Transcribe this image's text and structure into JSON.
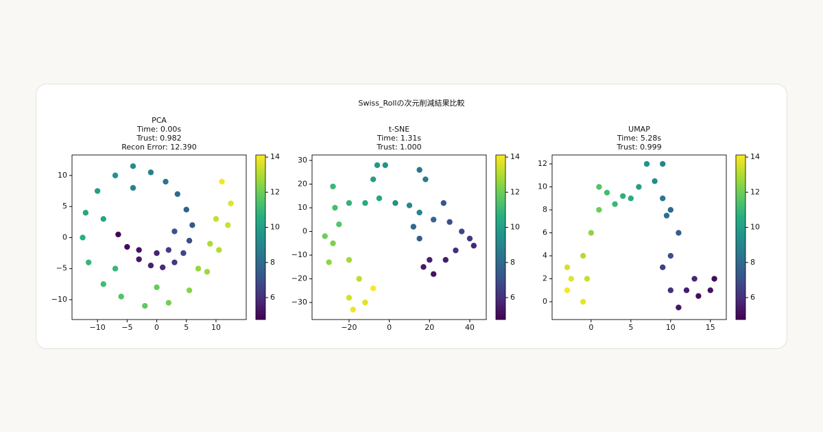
{
  "title": "Swiss_Rollの次元削減結果比較",
  "chart_data": [
    {
      "type": "scatter",
      "title": [
        "PCA",
        "Time: 0.00s",
        "Trust: 0.982",
        "Recon Error: 12.390"
      ],
      "colormap": "viridis",
      "x": [
        -6.5,
        -5,
        -3,
        -1,
        1,
        3,
        4.5,
        5.5,
        6,
        5,
        3.5,
        1.5,
        -1,
        -4,
        -7,
        -10,
        -12,
        -12.5,
        -11.5,
        -9,
        -6,
        -2,
        2,
        5.5,
        8.5,
        10.5,
        12,
        12.5,
        11,
        -3,
        0,
        2,
        3,
        -4,
        -9,
        -7,
        0,
        7,
        10,
        9
      ],
      "values": [
        0.5,
        -1.5,
        -3.5,
        -4.5,
        -4.8,
        -4,
        -2.5,
        -0.5,
        2,
        4.5,
        7,
        9,
        10.5,
        11.5,
        10,
        7.5,
        4,
        0,
        -4,
        -7.5,
        -9.5,
        -11,
        -10.5,
        -8.5,
        -5.5,
        -2,
        2,
        5.5,
        9,
        -2,
        -2.5,
        -2,
        1,
        8,
        3,
        -5,
        -8,
        -5,
        3,
        -1
      ],
      "color_values": [
        4.8,
        5.0,
        5.3,
        5.6,
        5.9,
        6.3,
        6.7,
        7.0,
        7.3,
        7.6,
        8.0,
        8.4,
        8.8,
        9.2,
        9.6,
        10.0,
        10.3,
        10.6,
        10.9,
        11.2,
        11.5,
        11.8,
        12.1,
        12.4,
        12.7,
        13.0,
        13.4,
        13.7,
        14.0,
        5.2,
        5.7,
        6.4,
        7.1,
        9.0,
        10.2,
        11.0,
        11.9,
        12.6,
        13.3,
        12.9
      ],
      "xlim": [
        -14.3,
        15.1
      ],
      "ylim": [
        -13.2,
        13.3
      ],
      "xticks": [
        {
          "value": -10,
          "label": "−10"
        },
        {
          "value": -5,
          "label": "−5"
        },
        0,
        5,
        10
      ],
      "yticks": [
        {
          "value": -10,
          "label": "−10"
        },
        {
          "value": -5,
          "label": "−5"
        },
        0,
        5,
        10
      ],
      "clim": [
        4.75,
        14.12
      ],
      "cticks": [
        6,
        8,
        10,
        12,
        14
      ]
    },
    {
      "type": "scatter",
      "title": [
        "t-SNE",
        "Time: 1.31s",
        "Trust: 1.000"
      ],
      "colormap": "viridis",
      "x": [
        -18,
        -12,
        -8,
        -20,
        -15,
        -20,
        -30,
        -28,
        -32,
        -25,
        -27,
        -28,
        -20,
        -12,
        -5,
        -8,
        -6,
        -2,
        3,
        10,
        15,
        18,
        15,
        12,
        15,
        22,
        27,
        30,
        36,
        40,
        42,
        33,
        28,
        22,
        17,
        20
      ],
      "values": [
        -33,
        -30,
        -24,
        -28,
        -20,
        -12,
        -13,
        -5,
        -2,
        3,
        10,
        19,
        12,
        12,
        14,
        22,
        28,
        28,
        12,
        11,
        8,
        22,
        26,
        2,
        -3,
        5,
        12,
        4,
        0,
        -3,
        -6,
        -8,
        -12,
        -18,
        -15,
        -12
      ],
      "color_values": [
        13.9,
        13.7,
        14.1,
        13.5,
        13.2,
        12.8,
        12.5,
        12.2,
        12.0,
        11.6,
        11.3,
        11.0,
        10.8,
        10.5,
        10.3,
        10.0,
        9.8,
        9.6,
        9.5,
        9.2,
        8.9,
        8.6,
        8.4,
        8.0,
        7.5,
        7.8,
        7.3,
        7.0,
        6.7,
        6.2,
        5.8,
        6.0,
        5.5,
        5.2,
        5.4,
        5.6
      ],
      "xlim": [
        -38.4,
        48.2
      ],
      "ylim": [
        -37.2,
        32.3
      ],
      "xticks": [
        {
          "value": -20,
          "label": "−20"
        },
        0,
        20,
        40
      ],
      "yticks": [
        {
          "value": -30,
          "label": "−30"
        },
        {
          "value": -20,
          "label": "−20"
        },
        {
          "value": -10,
          "label": "−10"
        },
        0,
        10,
        20,
        30
      ],
      "clim": [
        4.75,
        14.12
      ],
      "cticks": [
        6,
        8,
        10,
        12,
        14
      ]
    },
    {
      "type": "scatter",
      "title": [
        "UMAP",
        "Time: 5.28s",
        "Trust: 0.999"
      ],
      "colormap": "viridis",
      "x": [
        -3,
        -1,
        -3,
        -1,
        0,
        1,
        1,
        3,
        5,
        6,
        7,
        9,
        9,
        10,
        11,
        10,
        9,
        10,
        12,
        15,
        15.5,
        13,
        11,
        -2.5,
        -0.5,
        2,
        4,
        8,
        9.5,
        13.5
      ],
      "values": [
        1,
        0,
        3,
        4,
        6,
        8,
        10,
        8.5,
        9,
        10,
        12,
        12,
        9,
        8,
        6,
        4,
        3,
        1,
        1,
        1,
        2,
        2,
        -0.5,
        2,
        2,
        9.5,
        9.2,
        10.5,
        7.5,
        0.5
      ],
      "color_values": [
        14.0,
        13.8,
        13.5,
        13.0,
        12.5,
        12.0,
        11.5,
        11.0,
        10.5,
        10.0,
        9.5,
        9.0,
        8.5,
        8.0,
        7.5,
        7.0,
        6.5,
        6.0,
        5.5,
        5.2,
        5.0,
        5.8,
        5.3,
        13.7,
        13.3,
        11.2,
        10.7,
        9.3,
        8.2,
        5.1
      ],
      "xlim": [
        -4.9,
        17.0
      ],
      "ylim": [
        -1.55,
        12.78
      ],
      "xticks": [
        0,
        5,
        10,
        15
      ],
      "yticks": [
        0,
        2,
        4,
        6,
        8,
        10,
        12
      ],
      "clim": [
        4.75,
        14.12
      ],
      "cticks": [
        6,
        8,
        10,
        12,
        14
      ]
    }
  ]
}
